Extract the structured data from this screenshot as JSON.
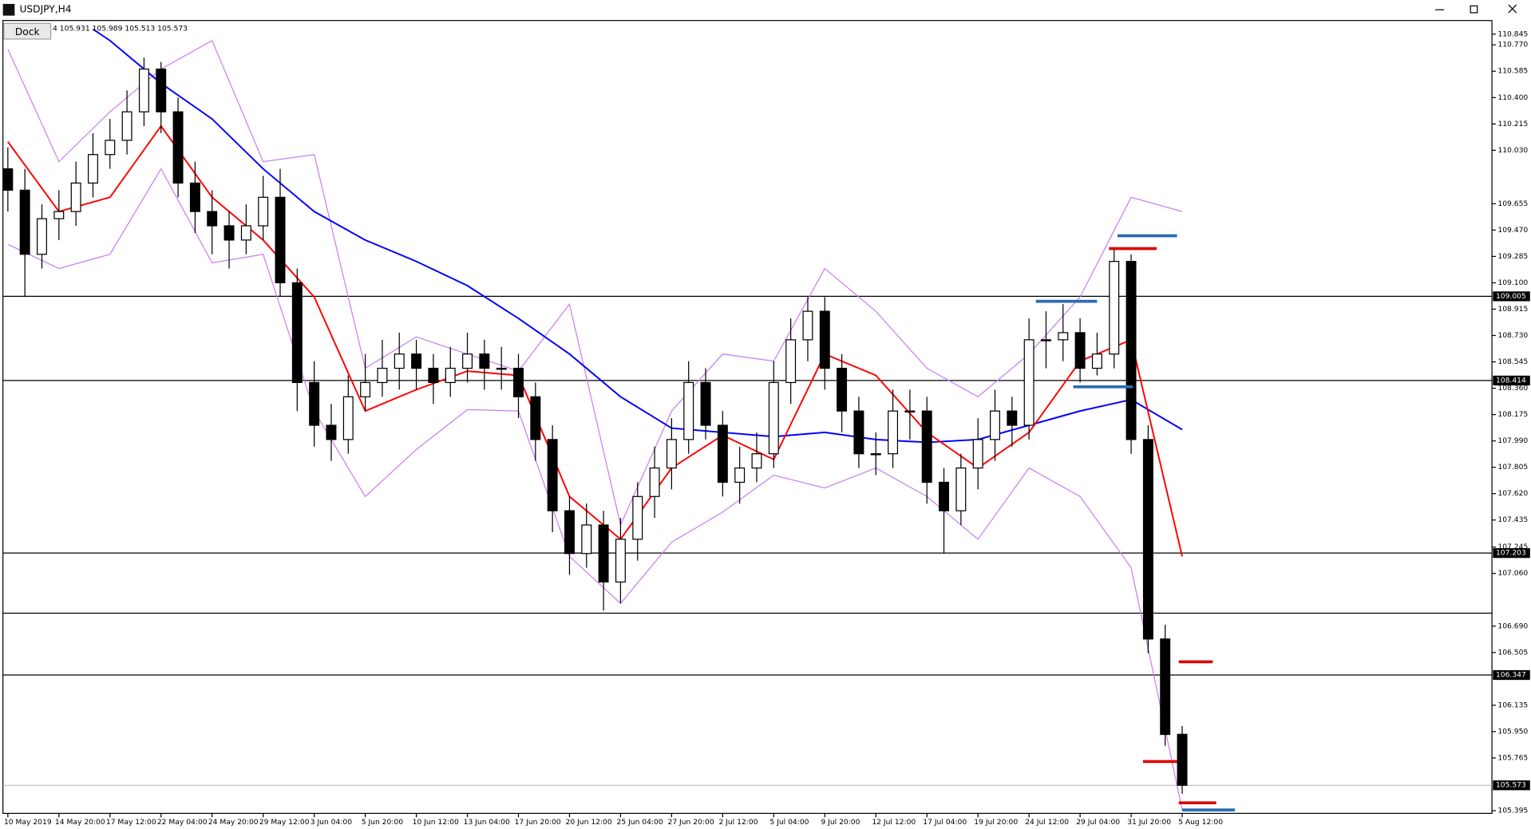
{
  "chart_data": {
    "type": "candlestick",
    "title": "USDJPY,H4",
    "ohlc_prefix": "4",
    "button": "Dock",
    "up_color": "#ffffff",
    "down_color": "#000000",
    "open": [
      109.9,
      109.75,
      109.3,
      109.55,
      109.6,
      109.8,
      110.0,
      110.1,
      110.3,
      110.6,
      110.3,
      109.8,
      109.6,
      109.5,
      109.4,
      109.5,
      109.7,
      109.1,
      108.4,
      108.1,
      108.0,
      108.3,
      108.4,
      108.5,
      108.6,
      108.5,
      108.4,
      108.5,
      108.6,
      108.5,
      108.5,
      108.3,
      108.0,
      107.5,
      107.2,
      107.4,
      107.0,
      107.3,
      107.6,
      107.8,
      108.0,
      108.4,
      108.1,
      107.7,
      107.8,
      107.9,
      108.4,
      108.7,
      108.9,
      108.5,
      108.2,
      107.9,
      107.9,
      108.2,
      108.2,
      107.7,
      107.5,
      107.8,
      108.0,
      108.2,
      108.1,
      108.7,
      108.7,
      108.75,
      108.5,
      108.6,
      109.25,
      108.0,
      106.6,
      105.931
    ],
    "high": [
      110.05,
      109.9,
      109.65,
      109.75,
      109.95,
      110.15,
      110.25,
      110.45,
      110.68,
      110.65,
      110.4,
      109.95,
      109.75,
      109.6,
      109.65,
      109.85,
      109.9,
      109.2,
      108.55,
      108.25,
      108.45,
      108.6,
      108.7,
      108.75,
      108.7,
      108.6,
      108.65,
      108.75,
      108.7,
      108.65,
      108.6,
      108.4,
      108.1,
      107.6,
      107.55,
      107.5,
      107.45,
      107.7,
      107.95,
      108.15,
      108.55,
      108.5,
      108.2,
      107.95,
      108.05,
      108.55,
      108.85,
      109.0,
      109.0,
      108.6,
      108.3,
      108.05,
      108.35,
      108.35,
      108.3,
      107.8,
      107.9,
      108.15,
      108.35,
      108.3,
      108.85,
      108.9,
      108.95,
      108.85,
      108.75,
      109.35,
      109.3,
      108.1,
      106.7,
      105.989
    ],
    "low": [
      109.6,
      109.0,
      109.2,
      109.4,
      109.5,
      109.7,
      109.9,
      110.0,
      110.2,
      110.15,
      109.7,
      109.45,
      109.3,
      109.2,
      109.3,
      109.4,
      109.0,
      108.2,
      107.95,
      107.85,
      107.9,
      108.2,
      108.3,
      108.35,
      108.35,
      108.25,
      108.3,
      108.4,
      108.35,
      108.35,
      108.15,
      107.85,
      107.35,
      107.05,
      107.1,
      106.8,
      106.85,
      107.15,
      107.45,
      107.65,
      107.9,
      108.0,
      107.6,
      107.55,
      107.7,
      107.8,
      108.25,
      108.55,
      108.35,
      108.05,
      107.8,
      107.75,
      107.8,
      108.0,
      107.55,
      107.2,
      107.4,
      107.65,
      107.85,
      107.95,
      108.0,
      108.5,
      108.55,
      108.4,
      108.45,
      108.5,
      107.9,
      106.5,
      105.85,
      105.513
    ],
    "close": [
      109.75,
      109.3,
      109.55,
      109.6,
      109.8,
      110.0,
      110.1,
      110.3,
      110.6,
      110.3,
      109.8,
      109.6,
      109.5,
      109.4,
      109.5,
      109.7,
      109.1,
      108.4,
      108.1,
      108.0,
      108.3,
      108.4,
      108.5,
      108.6,
      108.5,
      108.4,
      108.5,
      108.6,
      108.5,
      108.5,
      108.3,
      108.0,
      107.5,
      107.2,
      107.4,
      107.0,
      107.3,
      107.6,
      107.8,
      108.0,
      108.4,
      108.1,
      107.7,
      107.8,
      107.9,
      108.4,
      108.7,
      108.9,
      108.5,
      108.2,
      107.9,
      107.9,
      108.2,
      108.2,
      107.7,
      107.5,
      107.8,
      108.0,
      108.2,
      108.1,
      108.7,
      108.7,
      108.75,
      108.5,
      108.6,
      109.25,
      108.0,
      106.6,
      105.93,
      105.573
    ],
    "lines": [
      {
        "color": "#c77ff0",
        "x": [
          0,
          3,
          6,
          9,
          12,
          15,
          18,
          21,
          24,
          27,
          30,
          33,
          36,
          39,
          42,
          45,
          48,
          51,
          54,
          57,
          60,
          63,
          66,
          69
        ],
        "values": [
          110.74,
          109.95,
          110.3,
          110.6,
          110.8,
          109.95,
          110.0,
          108.5,
          108.72,
          108.6,
          108.48,
          108.95,
          107.4,
          108.2,
          108.6,
          108.55,
          109.2,
          108.9,
          108.5,
          108.3,
          108.6,
          109.0,
          109.7,
          109.6
        ]
      },
      {
        "color": "#c77ff0",
        "x": [
          0,
          3,
          6,
          9,
          12,
          15,
          18,
          21,
          24,
          27,
          30,
          33,
          36,
          39,
          42,
          45,
          48,
          51,
          54,
          57,
          60,
          63,
          66,
          69
        ],
        "values": [
          109.37,
          109.2,
          109.3,
          109.9,
          109.24,
          109.3,
          108.2,
          107.6,
          107.93,
          108.21,
          108.2,
          107.18,
          106.85,
          107.28,
          107.49,
          107.75,
          107.66,
          107.8,
          107.6,
          107.3,
          107.8,
          107.6,
          107.1,
          105.4
        ]
      },
      {
        "color": "#0000ff",
        "x": [
          5,
          6,
          9,
          12,
          15,
          18,
          21,
          24,
          27,
          30,
          33,
          36,
          39,
          42,
          45,
          48,
          51,
          54,
          57,
          60,
          63,
          66,
          69
        ],
        "values": [
          110.88,
          110.8,
          110.5,
          110.25,
          109.9,
          109.6,
          109.4,
          109.25,
          109.08,
          108.85,
          108.6,
          108.3,
          108.08,
          108.05,
          108.02,
          108.05,
          108.0,
          107.98,
          108.0,
          108.1,
          108.2,
          108.28,
          108.07
        ]
      },
      {
        "color": "#ff0000",
        "x": [
          0,
          3,
          6,
          9,
          12,
          15,
          18,
          21,
          24,
          27,
          30,
          33,
          36,
          39,
          42,
          45,
          48,
          51,
          54,
          57,
          60,
          63,
          66,
          69
        ],
        "values": [
          110.09,
          109.6,
          109.7,
          110.2,
          109.7,
          109.4,
          109.0,
          108.2,
          108.35,
          108.48,
          108.45,
          107.6,
          107.3,
          107.8,
          108.03,
          107.86,
          108.6,
          108.45,
          108.05,
          107.8,
          108.05,
          108.55,
          108.7,
          107.18
        ]
      }
    ],
    "levels": [
      {
        "value": 109.005,
        "color": "#000000",
        "tag": true
      },
      {
        "value": 108.414,
        "color": "#000000",
        "tag": true
      },
      {
        "value": 107.203,
        "color": "#000000",
        "tag": true
      },
      {
        "value": 106.781,
        "color": "#000000",
        "tag": false
      },
      {
        "value": 106.347,
        "color": "#000000",
        "tag": true
      },
      {
        "value": 105.573,
        "color": "#c0c0c0",
        "tag": true
      }
    ],
    "segments": [
      {
        "color": "#dd0000",
        "x": [
          64.7,
          67.5
        ],
        "value": 109.34
      },
      {
        "color": "#dd0000",
        "x": [
          68.8,
          70.8
        ],
        "value": 106.44
      },
      {
        "color": "#dd0000",
        "x": [
          66.7,
          68.7
        ],
        "value": 105.74
      },
      {
        "color": "#dd0000",
        "x": [
          68.8,
          71.0
        ],
        "value": 105.45
      },
      {
        "color": "#2a6cb5",
        "x": [
          65.2,
          68.7
        ],
        "value": 109.43
      },
      {
        "color": "#2a6cb5",
        "x": [
          60.4,
          64.0
        ],
        "value": 108.97
      },
      {
        "color": "#2a6cb5",
        "x": [
          62.6,
          66.1
        ],
        "value": 108.37
      },
      {
        "color": "#2a6cb5",
        "x": [
          69.0,
          72.1
        ],
        "value": 105.4
      }
    ],
    "ylim": [
      105.376,
      110.934
    ],
    "yticks": [
      {
        "value": 110.77,
        "label": "110.770"
      },
      110.585,
      {
        "value": 110.4,
        "label": "110.400"
      },
      110.215,
      {
        "value": 110.03,
        "label": "110.030"
      },
      110.845,
      109.655,
      {
        "value": 109.47,
        "label": "109.470"
      },
      109.285,
      {
        "value": 109.1,
        "label": "109.100"
      },
      108.915,
      {
        "value": 108.73,
        "label": "108.730"
      },
      108.545,
      {
        "value": 108.36,
        "label": "108.360"
      },
      108.175,
      {
        "value": 107.99,
        "label": "107.990"
      },
      107.805,
      {
        "value": 107.62,
        "label": "107.620"
      },
      107.435,
      107.245,
      {
        "value": 107.06,
        "label": "107.060"
      },
      {
        "value": 106.69,
        "label": "106.690"
      },
      106.505,
      106.135,
      {
        "value": 105.95,
        "label": "105.950"
      },
      105.765,
      105.395
    ],
    "xlim": [
      -0.29,
      87.2
    ],
    "xticks": [
      {
        "value": 0,
        "label": "10 May 2019"
      },
      {
        "value": 3,
        "label": "14 May 20:00"
      },
      {
        "value": 6,
        "label": "17 May 12:00"
      },
      {
        "value": 9,
        "label": "22 May 04:00"
      },
      {
        "value": 12,
        "label": "24 May 20:00"
      },
      {
        "value": 15,
        "label": "29 May 12:00"
      },
      {
        "value": 18,
        "label": "3 Jun 04:00"
      },
      {
        "value": 21,
        "label": "5 Jun 20:00"
      },
      {
        "value": 24,
        "label": "10 Jun 12:00"
      },
      {
        "value": 27,
        "label": "13 Jun 04:00"
      },
      {
        "value": 30,
        "label": "17 Jun 20:00"
      },
      {
        "value": 33,
        "label": "20 Jun 12:00"
      },
      {
        "value": 36,
        "label": "25 Jun 04:00"
      },
      {
        "value": 39,
        "label": "27 Jun 20:00"
      },
      {
        "value": 42,
        "label": "2 Jul 12:00"
      },
      {
        "value": 45,
        "label": "5 Jul 04:00"
      },
      {
        "value": 48,
        "label": "9 Jul 20:00"
      },
      {
        "value": 51,
        "label": "12 Jul 12:00"
      },
      {
        "value": 54,
        "label": "17 Jul 04:00"
      },
      {
        "value": 57,
        "label": "19 Jul 20:00"
      },
      {
        "value": 60,
        "label": "24 Jul 12:00"
      },
      {
        "value": 63,
        "label": "29 Jul 04:00"
      },
      {
        "value": 66,
        "label": "31 Jul 20:00"
      },
      {
        "value": 69,
        "label": "5 Aug 12:00"
      }
    ]
  }
}
